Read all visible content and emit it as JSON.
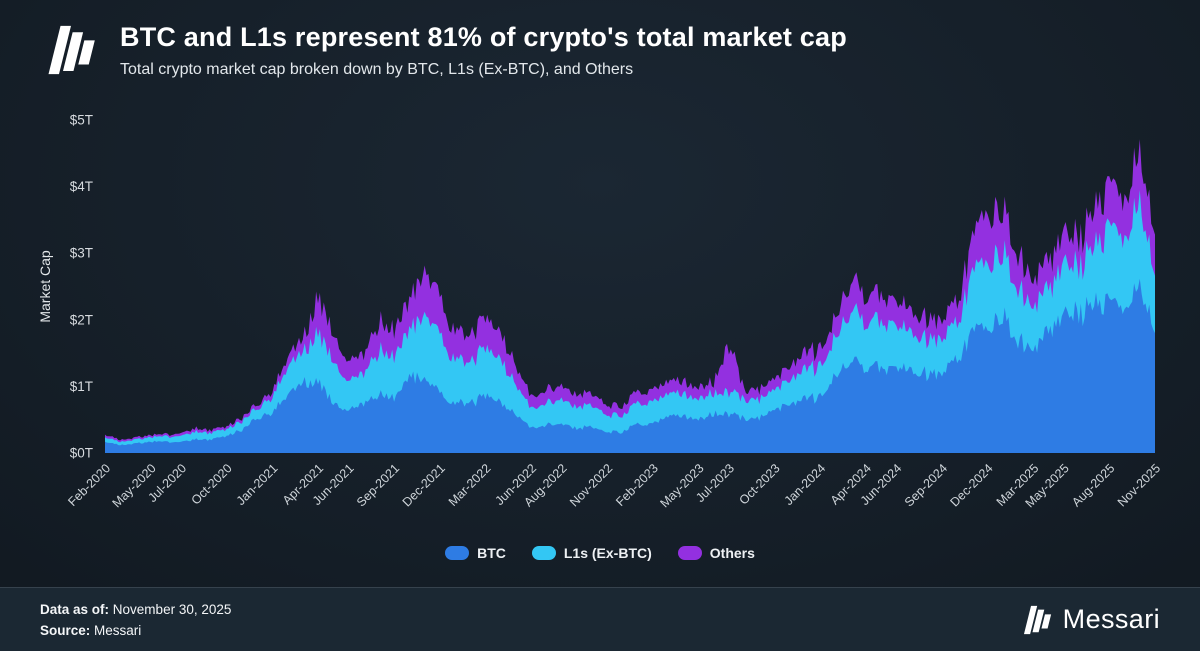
{
  "header": {
    "title": "BTC and L1s represent 81% of crypto's total market cap",
    "subtitle": "Total crypto market cap broken down by BTC, L1s (Ex-BTC), and Others"
  },
  "footer": {
    "data_as_of_label": "Data as of:",
    "data_as_of_value": "November 30, 2025",
    "source_label": "Source:",
    "source_value": "Messari",
    "brand": "Messari"
  },
  "colors": {
    "background": "#141d26",
    "footer_background": "#1b2833",
    "btc": "#2E7CE4",
    "l1s": "#33C7F4",
    "others": "#9330E0",
    "text": "#ffffff"
  },
  "chart_data": {
    "type": "area",
    "stacked": true,
    "title": "BTC and L1s represent 81% of crypto's total market cap",
    "subtitle": "Total crypto market cap broken down by BTC, L1s (Ex-BTC), and Others",
    "ylabel": "Market Cap",
    "xlabel": "",
    "ylim": [
      0,
      5
    ],
    "grid": false,
    "legend_position": "bottom",
    "y_ticks": [
      "$0T",
      "$1T",
      "$2T",
      "$3T",
      "$4T",
      "$5T"
    ],
    "y_tick_values": [
      0,
      1,
      2,
      3,
      4,
      5
    ],
    "x": [
      "Feb-2020",
      "Mar-2020",
      "Apr-2020",
      "May-2020",
      "Jun-2020",
      "Jul-2020",
      "Aug-2020",
      "Sep-2020",
      "Oct-2020",
      "Nov-2020",
      "Dec-2020",
      "Jan-2021",
      "Feb-2021",
      "Mar-2021",
      "Apr-2021",
      "May-2021",
      "Jun-2021",
      "Jul-2021",
      "Aug-2021",
      "Sep-2021",
      "Oct-2021",
      "Nov-2021",
      "Dec-2021",
      "Jan-2022",
      "Feb-2022",
      "Mar-2022",
      "Apr-2022",
      "May-2022",
      "Jun-2022",
      "Jul-2022",
      "Aug-2022",
      "Sep-2022",
      "Oct-2022",
      "Nov-2022",
      "Dec-2022",
      "Jan-2023",
      "Feb-2023",
      "Mar-2023",
      "Apr-2023",
      "May-2023",
      "Jun-2023",
      "Jul-2023",
      "Aug-2023",
      "Sep-2023",
      "Oct-2023",
      "Nov-2023",
      "Dec-2023",
      "Jan-2024",
      "Feb-2024",
      "Mar-2024",
      "Apr-2024",
      "May-2024",
      "Jun-2024",
      "Jul-2024",
      "Aug-2024",
      "Sep-2024",
      "Oct-2024",
      "Nov-2024",
      "Dec-2024",
      "Jan-2025",
      "Feb-2025",
      "Mar-2025",
      "Apr-2025",
      "May-2025",
      "Jun-2025",
      "Jul-2025",
      "Aug-2025",
      "Sep-2025",
      "Oct-2025",
      "Nov-2025"
    ],
    "x_tick_labels": [
      "Feb-2020",
      "May-2020",
      "Jul-2020",
      "Oct-2020",
      "Jan-2021",
      "Apr-2021",
      "Jun-2021",
      "Sep-2021",
      "Dec-2021",
      "Mar-2022",
      "Jun-2022",
      "Aug-2022",
      "Nov-2022",
      "Feb-2023",
      "May-2023",
      "Jul-2023",
      "Oct-2023",
      "Jan-2024",
      "Apr-2024",
      "Jun-2024",
      "Sep-2024",
      "Dec-2024",
      "Mar-2025",
      "May-2025",
      "Aug-2025",
      "Nov-2025"
    ],
    "units": "trillions USD",
    "series": [
      {
        "name": "BTC",
        "color": "#2E7CE4",
        "values": [
          0.17,
          0.12,
          0.14,
          0.17,
          0.17,
          0.17,
          0.21,
          0.2,
          0.25,
          0.35,
          0.54,
          0.62,
          0.85,
          1.1,
          1.05,
          0.72,
          0.65,
          0.74,
          0.88,
          0.82,
          1.15,
          1.15,
          0.9,
          0.73,
          0.75,
          0.85,
          0.76,
          0.58,
          0.38,
          0.44,
          0.43,
          0.37,
          0.39,
          0.32,
          0.32,
          0.44,
          0.45,
          0.54,
          0.56,
          0.52,
          0.58,
          0.58,
          0.51,
          0.52,
          0.66,
          0.73,
          0.82,
          0.83,
          1.18,
          1.38,
          1.26,
          1.33,
          1.24,
          1.28,
          1.17,
          1.24,
          1.38,
          1.86,
          1.9,
          2.0,
          1.7,
          1.64,
          1.76,
          2.08,
          2.08,
          2.3,
          2.22,
          2.2,
          2.42,
          1.8
        ]
      },
      {
        "name": "L1s (Ex-BTC)",
        "color": "#33C7F4",
        "values": [
          0.07,
          0.05,
          0.06,
          0.07,
          0.08,
          0.09,
          0.12,
          0.1,
          0.1,
          0.13,
          0.15,
          0.24,
          0.4,
          0.48,
          0.72,
          0.6,
          0.45,
          0.45,
          0.65,
          0.62,
          0.72,
          1.0,
          0.85,
          0.65,
          0.62,
          0.7,
          0.64,
          0.45,
          0.3,
          0.34,
          0.36,
          0.32,
          0.33,
          0.26,
          0.25,
          0.32,
          0.33,
          0.33,
          0.34,
          0.31,
          0.31,
          0.33,
          0.29,
          0.28,
          0.3,
          0.36,
          0.45,
          0.46,
          0.58,
          0.75,
          0.68,
          0.7,
          0.62,
          0.6,
          0.52,
          0.53,
          0.55,
          0.85,
          1.0,
          0.95,
          0.76,
          0.66,
          0.62,
          0.76,
          0.7,
          0.9,
          1.08,
          1.05,
          1.22,
          0.86
        ]
      },
      {
        "name": "Others",
        "color": "#9330E0",
        "values": [
          0.04,
          0.03,
          0.03,
          0.03,
          0.03,
          0.04,
          0.05,
          0.04,
          0.04,
          0.05,
          0.06,
          0.09,
          0.15,
          0.2,
          0.52,
          0.4,
          0.3,
          0.28,
          0.42,
          0.4,
          0.45,
          0.68,
          0.55,
          0.42,
          0.4,
          0.45,
          0.4,
          0.28,
          0.18,
          0.2,
          0.2,
          0.18,
          0.18,
          0.15,
          0.14,
          0.17,
          0.18,
          0.18,
          0.19,
          0.17,
          0.16,
          0.72,
          0.15,
          0.15,
          0.16,
          0.2,
          0.25,
          0.26,
          0.3,
          0.45,
          0.4,
          0.4,
          0.35,
          0.33,
          0.3,
          0.3,
          0.3,
          0.52,
          0.75,
          0.65,
          0.5,
          0.42,
          0.4,
          0.46,
          0.42,
          0.55,
          0.64,
          0.6,
          0.72,
          0.62
        ]
      }
    ]
  }
}
